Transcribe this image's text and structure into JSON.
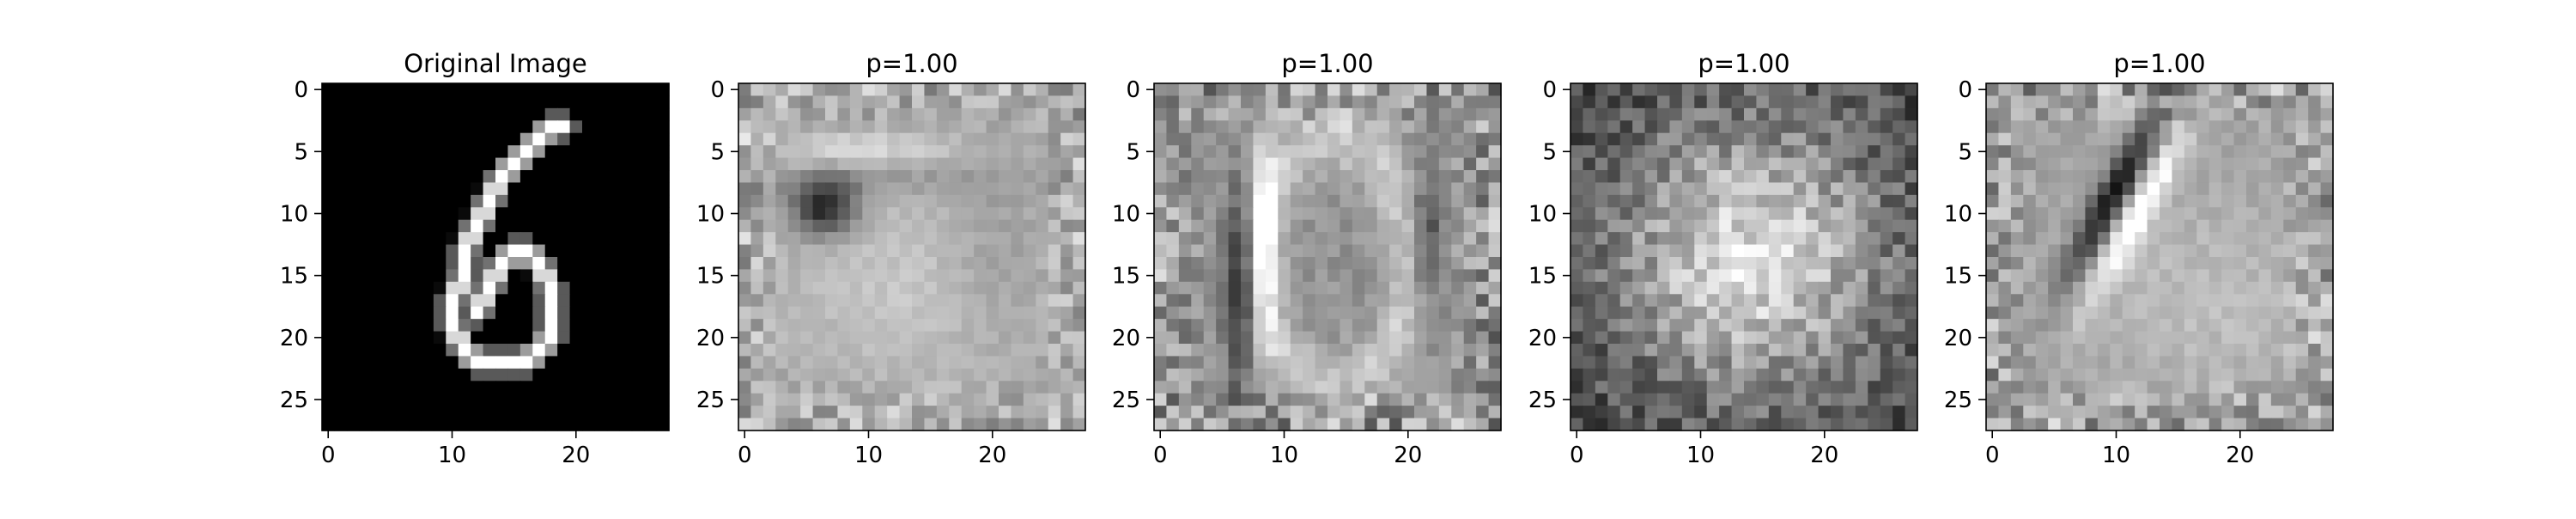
{
  "chart_data": [
    {
      "type": "heatmap",
      "title": "Original Image",
      "colormap": "gray",
      "grid": "off",
      "xlim": [
        -0.5,
        27.5
      ],
      "ylim": [
        27.5,
        -0.5
      ],
      "xticks": [
        0,
        10,
        20
      ],
      "yticks": [
        0,
        5,
        10,
        15,
        20,
        25
      ],
      "description_kind": "digit-6"
    },
    {
      "type": "heatmap",
      "title": "p=1.00",
      "colormap": "gray",
      "grid": "off",
      "xlim": [
        -0.5,
        27.5
      ],
      "ylim": [
        27.5,
        -0.5
      ],
      "xticks": [
        0,
        10,
        20
      ],
      "yticks": [
        0,
        5,
        10,
        15,
        20,
        25
      ],
      "description_kind": "blob-left"
    },
    {
      "type": "heatmap",
      "title": "p=1.00",
      "colormap": "gray",
      "grid": "off",
      "xlim": [
        -0.5,
        27.5
      ],
      "ylim": [
        27.5,
        -0.5
      ],
      "xticks": [
        0,
        10,
        20
      ],
      "yticks": [
        0,
        5,
        10,
        15,
        20,
        25
      ],
      "description_kind": "zero-shape"
    },
    {
      "type": "heatmap",
      "title": "p=1.00",
      "colormap": "gray",
      "grid": "off",
      "xlim": [
        -0.5,
        27.5
      ],
      "ylim": [
        27.5,
        -0.5
      ],
      "xticks": [
        0,
        10,
        20
      ],
      "yticks": [
        0,
        5,
        10,
        15,
        20,
        25
      ],
      "description_kind": "bright-center"
    },
    {
      "type": "heatmap",
      "title": "p=1.00",
      "colormap": "gray",
      "grid": "off",
      "xlim": [
        -0.5,
        27.5
      ],
      "ylim": [
        27.5,
        -0.5
      ],
      "xticks": [
        0,
        10,
        20
      ],
      "yticks": [
        0,
        5,
        10,
        15,
        20,
        25
      ],
      "description_kind": "diagonal-stroke"
    }
  ],
  "digit_strokes": [
    [
      [
        17,
        4
      ],
      [
        18,
        3
      ],
      [
        19,
        3
      ]
    ],
    [
      [
        17,
        4
      ],
      [
        16,
        5
      ],
      [
        15,
        6
      ],
      [
        14,
        7
      ],
      [
        13,
        9
      ],
      [
        12,
        11
      ],
      [
        11,
        13
      ],
      [
        11,
        15
      ],
      [
        10,
        17
      ],
      [
        10,
        19
      ],
      [
        11,
        21
      ],
      [
        12,
        22
      ],
      [
        14,
        22
      ],
      [
        16,
        22
      ],
      [
        17,
        21
      ],
      [
        18,
        20
      ],
      [
        18,
        18
      ],
      [
        18,
        16
      ],
      [
        17,
        14
      ],
      [
        16,
        13
      ],
      [
        15,
        13
      ],
      [
        14,
        14
      ],
      [
        13,
        16
      ],
      [
        12,
        18
      ]
    ]
  ]
}
